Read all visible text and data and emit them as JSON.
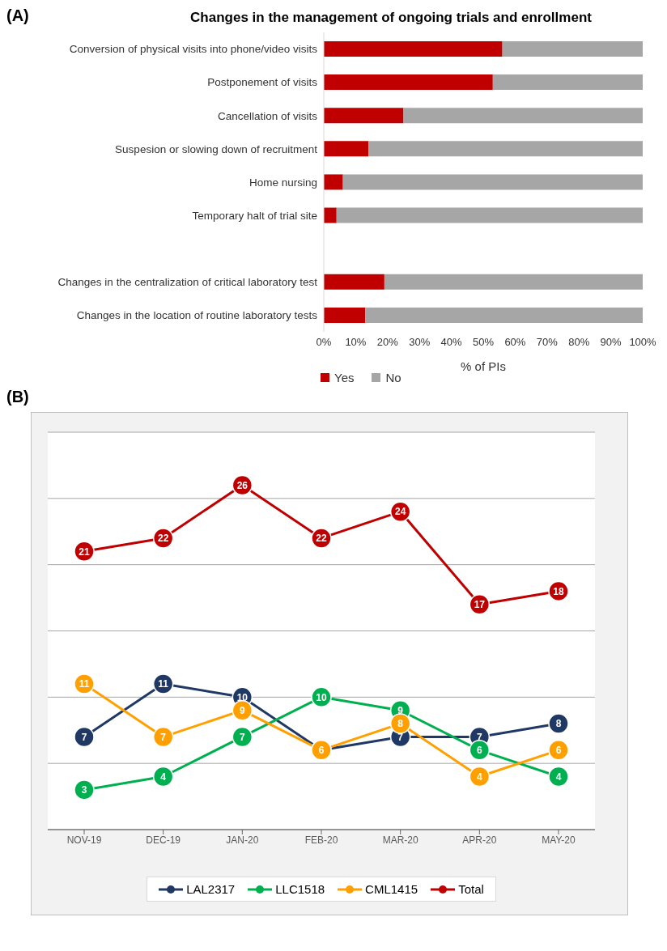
{
  "chart_data": [
    {
      "type": "bar",
      "orientation": "horizontal",
      "stacked": true,
      "title": "Changes in the management of ongoing trials and enrollment",
      "annotations": [
        "(A)"
      ],
      "xlabel": "% of PIs",
      "categories": [
        "Conversion of physical visits into phone/video visits",
        "Postponement of visits",
        "Cancellation of visits",
        "Suspesion or slowing down of recruitment",
        "Home nursing",
        "Temporary halt of trial site",
        null,
        "Changes in the centralization of critical laboratory test",
        "Changes in the location of routine laboratory tests"
      ],
      "series": [
        {
          "name": "Yes",
          "color": "#c00000",
          "values": [
            56,
            53,
            25,
            14,
            6,
            4,
            null,
            19,
            13
          ]
        },
        {
          "name": "No",
          "color": "#a6a6a6",
          "values": [
            44,
            47,
            75,
            86,
            94,
            96,
            null,
            81,
            87
          ]
        }
      ],
      "xlim": [
        0,
        100
      ],
      "xticks": [
        {
          "value": 0,
          "label": "0%"
        },
        {
          "value": 10,
          "label": "10%"
        },
        {
          "value": 20,
          "label": "20%"
        },
        {
          "value": 30,
          "label": "30%"
        },
        {
          "value": 40,
          "label": "40%"
        },
        {
          "value": 50,
          "label": "50%"
        },
        {
          "value": 60,
          "label": "60%"
        },
        {
          "value": 70,
          "label": "70%"
        },
        {
          "value": 80,
          "label": "80%"
        },
        {
          "value": 90,
          "label": "90%"
        },
        {
          "value": 100,
          "label": "100%"
        }
      ],
      "grid": false,
      "legend": "bottom left",
      "tick_labels": "xy"
    },
    {
      "type": "line",
      "annotations": [
        "(B)"
      ],
      "categories": [
        "NOV-19",
        "DEC-19",
        "JAN-20",
        "FEB-20",
        "MAR-20",
        "APR-20",
        "MAY-20"
      ],
      "series": [
        {
          "name": "LAL2317",
          "color": "#203864",
          "values": [
            7,
            11,
            10,
            6,
            7,
            7,
            8
          ],
          "value_labels": [
            "7",
            "11",
            "10",
            null,
            "7",
            "7",
            "8"
          ]
        },
        {
          "name": "LLC1518",
          "color": "#00b050",
          "values": [
            3,
            4,
            7,
            10,
            9,
            6,
            4
          ],
          "value_labels": [
            "3",
            "4",
            "7",
            "10",
            "9",
            "6",
            "4"
          ]
        },
        {
          "name": "CML1415",
          "color": "#ffa000",
          "values": [
            11,
            7,
            9,
            6,
            8,
            4,
            6
          ],
          "value_labels": [
            "11",
            "7",
            "9",
            "6",
            "8",
            "4",
            "6"
          ]
        },
        {
          "name": "Total",
          "color": "#c00000",
          "values": [
            21,
            22,
            26,
            22,
            24,
            17,
            18
          ],
          "value_labels": [
            "21",
            "22",
            "26",
            "22",
            "24",
            "17",
            "18"
          ]
        }
      ],
      "grid": "y",
      "tick_labels": "x",
      "legend": "bottom",
      "marker": "circle",
      "line_style": "solid"
    }
  ]
}
